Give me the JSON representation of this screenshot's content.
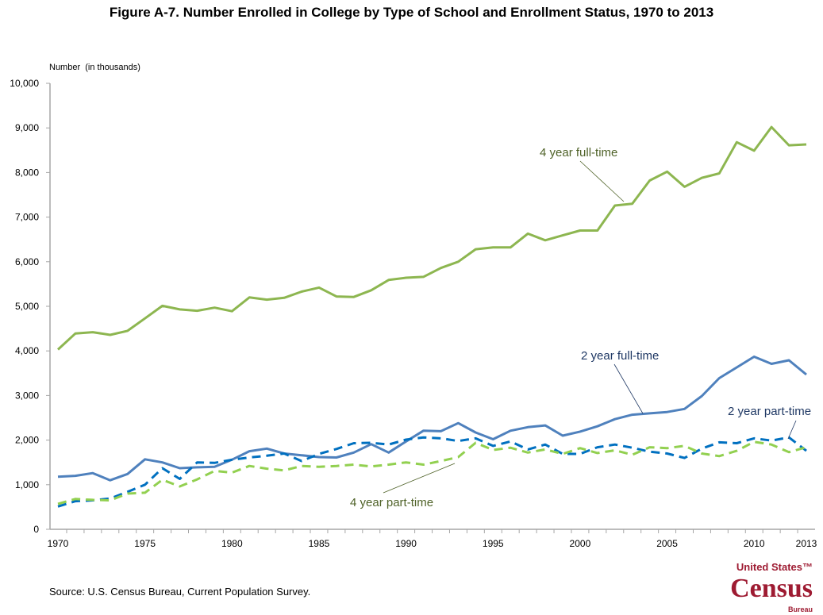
{
  "title": "Figure A-7. Number Enrolled in College by Type of School and Enrollment Status, 1970 to 2013",
  "source": "Source: U.S. Census Bureau, Current Population Survey.",
  "logo": {
    "line1": "United States™",
    "line2": "Census",
    "line3": "Bureau",
    "color": "#9e1b32"
  },
  "chart_data": {
    "type": "line",
    "title": "Figure A-7. Number Enrolled in College by Type of School and Enrollment Status, 1970 to 2013",
    "ylabel": "Number  (in thousands)",
    "xlabel": "",
    "ylim": [
      0,
      10000
    ],
    "xlim": [
      1970,
      2013
    ],
    "yticks": [
      "0",
      "1,000",
      "2,000",
      "3,000",
      "4,000",
      "5,000",
      "6,000",
      "7,000",
      "8,000",
      "9,000",
      "10,000"
    ],
    "xticks": [
      "1970",
      "1975",
      "1980",
      "1985",
      "1990",
      "1995",
      "2000",
      "2005",
      "2010",
      "2013"
    ],
    "grid": false,
    "legend": "inline labels",
    "x": [
      1970,
      1971,
      1972,
      1973,
      1974,
      1975,
      1976,
      1977,
      1978,
      1979,
      1980,
      1981,
      1982,
      1983,
      1984,
      1985,
      1986,
      1987,
      1988,
      1989,
      1990,
      1991,
      1992,
      1993,
      1994,
      1995,
      1996,
      1997,
      1998,
      1999,
      2000,
      2001,
      2002,
      2003,
      2004,
      2005,
      2006,
      2007,
      2008,
      2009,
      2010,
      2011,
      2012,
      2013
    ],
    "series": [
      {
        "name": "4 year full-time",
        "color": "#8db650",
        "dash": false,
        "values": [
          4030,
          4390,
          4420,
          4360,
          4450,
          4730,
          5010,
          4930,
          4900,
          4970,
          4890,
          5200,
          5150,
          5190,
          5330,
          5420,
          5220,
          5210,
          5360,
          5590,
          5640,
          5660,
          5860,
          6000,
          6280,
          6320,
          6320,
          6630,
          6480,
          6590,
          6700,
          6700,
          7260,
          7300,
          7820,
          8020,
          7680,
          7880,
          7980,
          8680,
          8490,
          9020,
          8610,
          8630
        ]
      },
      {
        "name": "2 year full-time",
        "color": "#4f81bd",
        "dash": false,
        "values": [
          1180,
          1200,
          1260,
          1100,
          1240,
          1570,
          1500,
          1370,
          1390,
          1400,
          1560,
          1750,
          1810,
          1700,
          1660,
          1620,
          1610,
          1720,
          1910,
          1720,
          1970,
          2210,
          2200,
          2380,
          2170,
          2020,
          2210,
          2290,
          2330,
          2100,
          2190,
          2310,
          2470,
          2570,
          2600,
          2630,
          2700,
          2990,
          3390,
          3630,
          3870,
          3710,
          3790,
          3470
        ]
      },
      {
        "name": "2 year part-time",
        "color": "#0070c0",
        "dash": true,
        "values": [
          510,
          630,
          650,
          690,
          840,
          1000,
          1370,
          1130,
          1500,
          1490,
          1560,
          1610,
          1650,
          1700,
          1530,
          1690,
          1800,
          1930,
          1940,
          1900,
          2010,
          2060,
          2040,
          1980,
          2040,
          1870,
          1970,
          1790,
          1900,
          1690,
          1690,
          1840,
          1900,
          1830,
          1740,
          1700,
          1600,
          1810,
          1950,
          1930,
          2040,
          1990,
          2060,
          1760
        ]
      },
      {
        "name": "4 year part-time",
        "color": "#92d050",
        "dash": true,
        "values": [
          570,
          680,
          660,
          650,
          800,
          820,
          1110,
          960,
          1120,
          1310,
          1270,
          1420,
          1360,
          1320,
          1420,
          1400,
          1420,
          1450,
          1410,
          1450,
          1500,
          1450,
          1530,
          1620,
          1940,
          1780,
          1830,
          1720,
          1790,
          1690,
          1820,
          1710,
          1770,
          1670,
          1840,
          1820,
          1870,
          1700,
          1640,
          1760,
          1960,
          1900,
          1730,
          1840
        ]
      }
    ],
    "annotations": [
      {
        "text": "4 year full-time",
        "series": "4 year full-time",
        "year": 2002.5,
        "color": "#4f6228"
      },
      {
        "text": "2 year full-time",
        "series": "2 year full-time",
        "year": 2003,
        "color": "#1f3864"
      },
      {
        "text": "2 year part-time",
        "series": "2 year part-time",
        "year": 2012,
        "color": "#1f3864"
      },
      {
        "text": "4 year part-time",
        "series": "4 year part-time",
        "year": 1993,
        "color": "#4f6228"
      }
    ]
  }
}
